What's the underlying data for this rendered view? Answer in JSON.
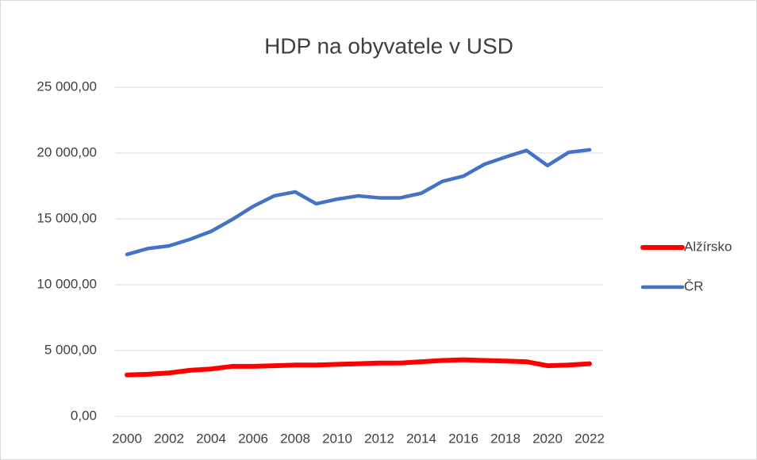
{
  "chart_data": {
    "type": "line",
    "title": "HDP na obyvatele v USD",
    "x": [
      2000,
      2001,
      2002,
      2003,
      2004,
      2005,
      2006,
      2007,
      2008,
      2009,
      2010,
      2011,
      2012,
      2013,
      2014,
      2015,
      2016,
      2017,
      2018,
      2019,
      2020,
      2021,
      2022
    ],
    "xlim": [
      2000,
      2022
    ],
    "xticks": [
      2000,
      2002,
      2004,
      2006,
      2008,
      2010,
      2012,
      2014,
      2016,
      2018,
      2020,
      2022
    ],
    "series": [
      {
        "name": "Alžírsko",
        "color": "#ff0000",
        "values": [
          3150,
          3200,
          3300,
          3500,
          3600,
          3800,
          3800,
          3850,
          3900,
          3900,
          3950,
          4000,
          4050,
          4050,
          4150,
          4250,
          4300,
          4250,
          4200,
          4150,
          3850,
          3900,
          4000
        ]
      },
      {
        "name": "ČR",
        "color": "#4472c4",
        "values": [
          12300,
          12750,
          12950,
          13450,
          14050,
          14950,
          15950,
          16750,
          17050,
          16150,
          16500,
          16750,
          16600,
          16600,
          16950,
          17850,
          18250,
          19150,
          19700,
          20200,
          19050,
          20050,
          20250
        ]
      }
    ],
    "ylim": [
      0,
      25000
    ],
    "yticks": [
      {
        "value": 0,
        "label": "0,00"
      },
      {
        "value": 5000,
        "label": "5 000,00"
      },
      {
        "value": 10000,
        "label": "10 000,00"
      },
      {
        "value": 15000,
        "label": "15 000,00"
      },
      {
        "value": 20000,
        "label": "20 000,00"
      },
      {
        "value": 25000,
        "label": "25 000,00"
      }
    ],
    "grid": true,
    "legend": "right"
  }
}
